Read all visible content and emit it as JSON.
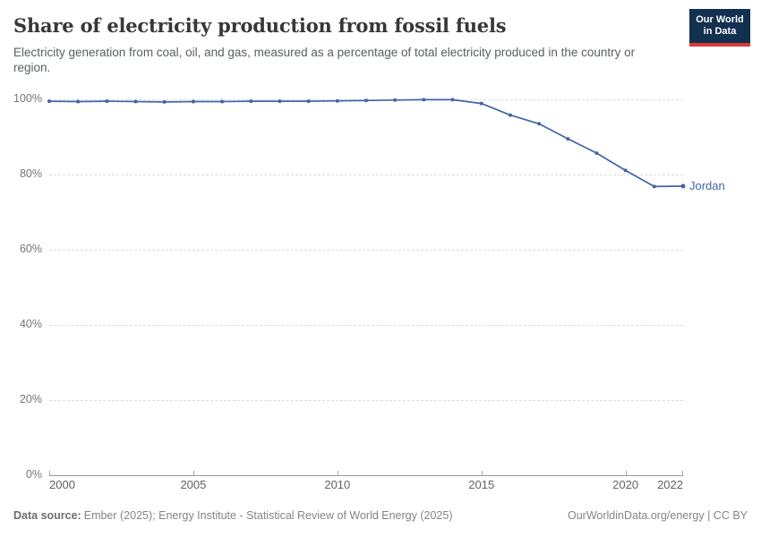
{
  "header": {
    "title": "Share of electricity production from fossil fuels",
    "subtitle": "Electricity generation from coal, oil, and gas, measured as a percentage of total electricity produced in the country or region.",
    "logo": {
      "line1": "Our World",
      "line2": "in Data"
    }
  },
  "chart_data": {
    "type": "line",
    "title": "Share of electricity production from fossil fuels",
    "subtitle": "Electricity generation from coal, oil, and gas, measured as a percentage of total electricity produced in the country or region.",
    "x": [
      2000,
      2001,
      2002,
      2003,
      2004,
      2005,
      2006,
      2007,
      2008,
      2009,
      2010,
      2011,
      2012,
      2013,
      2014,
      2015,
      2016,
      2017,
      2018,
      2019,
      2020,
      2021,
      2022
    ],
    "series": [
      {
        "name": "Jordan",
        "values": [
          99.5,
          99.4,
          99.5,
          99.4,
          99.3,
          99.4,
          99.4,
          99.5,
          99.5,
          99.5,
          99.6,
          99.7,
          99.8,
          99.9,
          99.9,
          98.9,
          95.8,
          93.5,
          89.5,
          85.7,
          81.1,
          76.8,
          76.9
        ]
      }
    ],
    "xlabel": "",
    "ylabel": "",
    "xlim": [
      2000,
      2022
    ],
    "ylim": [
      0,
      100
    ],
    "yticks": [
      0,
      20,
      40,
      60,
      80,
      100
    ],
    "ytick_labels": [
      "0%",
      "20%",
      "40%",
      "60%",
      "80%",
      "100%"
    ],
    "xticks": [
      2000,
      2005,
      2010,
      2015,
      2020,
      2022
    ],
    "xtick_labels": [
      "2000",
      "2005",
      "2010",
      "2015",
      "2020",
      "2022"
    ],
    "grid": "horizontal-dashed",
    "legend_position": "end-of-line",
    "end_label": "Jordan",
    "line_color": "#4264a5",
    "marker_radius": 2,
    "end_marker_radius": 2.5
  },
  "footer": {
    "source_label": "Data source:",
    "source_text": "Ember (2025); Energy Institute - Statistical Review of World Energy (2025)",
    "credit": "OurWorldinData.org/energy | CC BY"
  },
  "colors": {
    "accent_line": "#4264a5",
    "logo_bg": "#12304f",
    "logo_stripe": "#dc3a3a",
    "gridline": "#dcdcdc",
    "axis": "#9b9b9b",
    "title_text": "#373737",
    "subtitle_text": "#595f63",
    "tick_text": "#757575"
  }
}
